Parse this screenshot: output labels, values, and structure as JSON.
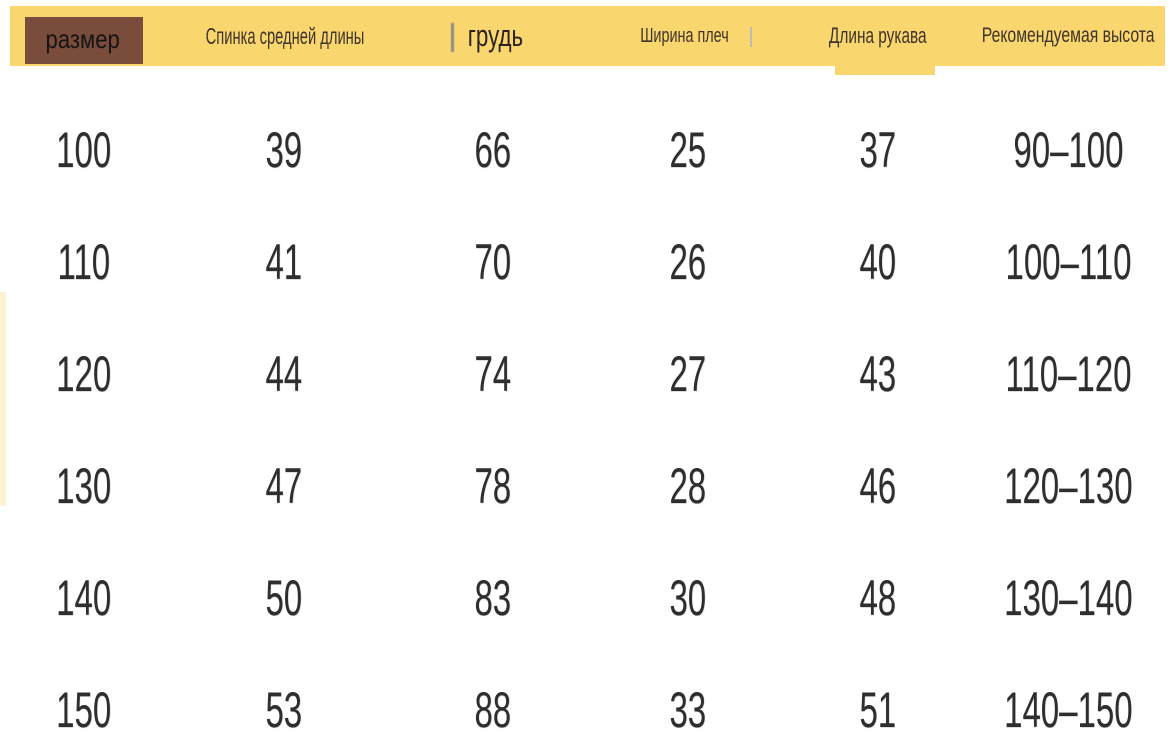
{
  "chart_data": {
    "type": "table",
    "columns": [
      "размер",
      "Спинка средней длины",
      "грудь",
      "Ширина плеч",
      "Длина рукава",
      "Рекомендуемая высота"
    ],
    "rows": [
      [
        "100",
        "39",
        "66",
        "25",
        "37",
        "90–100"
      ],
      [
        "110",
        "41",
        "70",
        "26",
        "40",
        "100–110"
      ],
      [
        "120",
        "44",
        "74",
        "27",
        "43",
        "110–120"
      ],
      [
        "130",
        "47",
        "78",
        "28",
        "46",
        "120–130"
      ],
      [
        "140",
        "50",
        "83",
        "30",
        "48",
        "130–140"
      ],
      [
        "150",
        "53",
        "88",
        "33",
        "51",
        "140–150"
      ]
    ],
    "layout": {
      "header_row_highlighted": true,
      "first_header_cell_highlighted": true,
      "grid_lines": "none"
    }
  },
  "colors": {
    "header_band_bg": "#FAD66F",
    "size_cell_highlight_bg": "#7A4C3B",
    "header_text": "#3E332B",
    "size_cell_text": "#141414",
    "body_text": "#2E2E2E",
    "page_bg": "#FFFFFF"
  },
  "artifacts": [
    "brush-stroke-before-spinka",
    "smudge-before-grud",
    "smudge-after-plech",
    "yellow-notch-below-dlina-rukava",
    "pale-strip-left-edge"
  ]
}
